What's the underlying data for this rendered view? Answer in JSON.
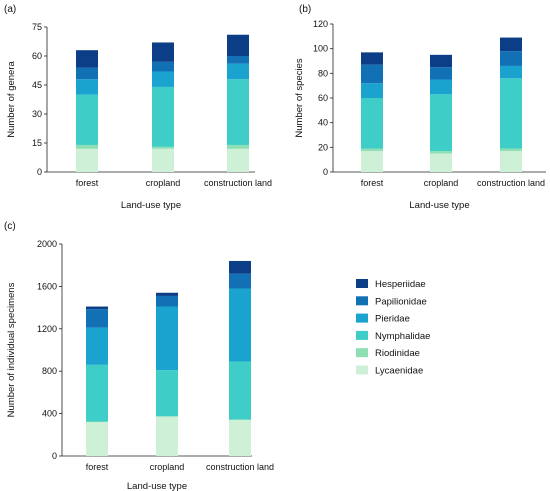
{
  "colors": {
    "Hesperiidae": "#0b3e86",
    "Papilionidae": "#1271b5",
    "Pieridae": "#1ba3cf",
    "Nymphalidae": "#3ecdc7",
    "Riodinidae": "#8ee0b4",
    "Lycaenidae": "#cdf0d6"
  },
  "legend": {
    "entries": [
      "Hesperiidae",
      "Papilionidae",
      "Pieridae",
      "Nymphalidae",
      "Riodinidae",
      "Lycaenidae"
    ]
  },
  "chart_data": [
    {
      "type": "bar",
      "stacked": true,
      "panel_label": "(a)",
      "categories": [
        "forest",
        "cropland",
        "construction land"
      ],
      "xlabel": "Land-use type",
      "ylabel": "Number of genera",
      "ylim": [
        0,
        75
      ],
      "yticks": [
        0,
        15,
        30,
        45,
        60,
        75
      ],
      "series": [
        {
          "name": "Lycaenidae",
          "values": [
            12,
            12,
            12
          ]
        },
        {
          "name": "Riodinidae",
          "values": [
            2,
            1,
            2
          ]
        },
        {
          "name": "Nymphalidae",
          "values": [
            26,
            31,
            34
          ]
        },
        {
          "name": "Pieridae",
          "values": [
            8,
            8,
            8
          ]
        },
        {
          "name": "Papilionidae",
          "values": [
            6,
            5,
            4
          ]
        },
        {
          "name": "Hesperiidae",
          "values": [
            9,
            10,
            11
          ]
        }
      ]
    },
    {
      "type": "bar",
      "stacked": true,
      "panel_label": "(b)",
      "categories": [
        "forest",
        "cropland",
        "construction land"
      ],
      "xlabel": "Land-use type",
      "ylabel": "Number of species",
      "ylim": [
        0,
        120
      ],
      "yticks": [
        0,
        20,
        40,
        60,
        80,
        100,
        120
      ],
      "series": [
        {
          "name": "Lycaenidae",
          "values": [
            17,
            15,
            17
          ]
        },
        {
          "name": "Riodinidae",
          "values": [
            2,
            2,
            2
          ]
        },
        {
          "name": "Nymphalidae",
          "values": [
            41,
            46,
            57
          ]
        },
        {
          "name": "Pieridae",
          "values": [
            12,
            12,
            10
          ]
        },
        {
          "name": "Papilionidae",
          "values": [
            15,
            10,
            12
          ]
        },
        {
          "name": "Hesperiidae",
          "values": [
            10,
            10,
            11
          ]
        }
      ]
    },
    {
      "type": "bar",
      "stacked": true,
      "panel_label": "(c)",
      "categories": [
        "forest",
        "cropland",
        "construction land"
      ],
      "xlabel": "Land-use type",
      "ylabel": "Number of individual specimens",
      "ylim": [
        0,
        2000
      ],
      "yticks": [
        0,
        400,
        800,
        1200,
        1600,
        2000
      ],
      "series": [
        {
          "name": "Lycaenidae",
          "values": [
            320,
            370,
            340
          ]
        },
        {
          "name": "Riodinidae",
          "values": [
            5,
            5,
            5
          ]
        },
        {
          "name": "Nymphalidae",
          "values": [
            535,
            435,
            545
          ]
        },
        {
          "name": "Pieridae",
          "values": [
            350,
            600,
            690
          ]
        },
        {
          "name": "Papilionidae",
          "values": [
            175,
            100,
            140
          ]
        },
        {
          "name": "Hesperiidae",
          "values": [
            25,
            30,
            120
          ]
        }
      ]
    }
  ]
}
